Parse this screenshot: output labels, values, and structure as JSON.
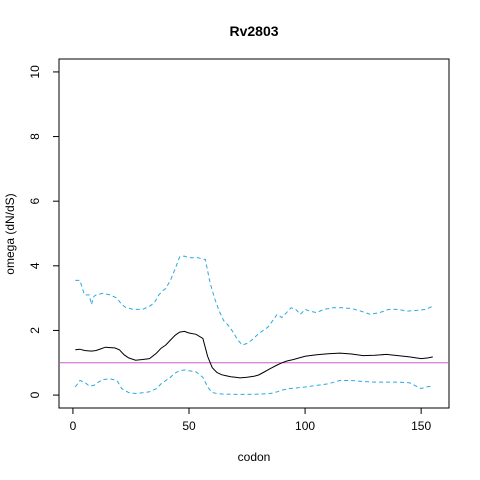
{
  "chart_data": {
    "type": "line",
    "title": "Rv2803",
    "xlabel": "codon",
    "ylabel": "omega (dN/dS)",
    "xlim": [
      -6,
      162
    ],
    "ylim": [
      -0.4,
      10.4
    ],
    "x_ticks": [
      0,
      50,
      100,
      150
    ],
    "y_ticks": [
      0,
      2,
      4,
      6,
      8,
      10
    ],
    "grid": false,
    "reference_line": {
      "y": 1,
      "color": "#c85fc8"
    },
    "series": [
      {
        "role": "estimate",
        "color": "#000000",
        "dash": "solid",
        "x": [
          1,
          3,
          5,
          8,
          10,
          12,
          14,
          16,
          18,
          20,
          22,
          24,
          27,
          30,
          33,
          36,
          38,
          40,
          42,
          44,
          46,
          48,
          50,
          53,
          56,
          58,
          60,
          62,
          64,
          66,
          68,
          70,
          72,
          75,
          78,
          80,
          82,
          85,
          88,
          90,
          92,
          95,
          100,
          105,
          110,
          115,
          120,
          125,
          130,
          135,
          140,
          145,
          150,
          153,
          155
        ],
        "values": [
          1.4,
          1.42,
          1.38,
          1.36,
          1.38,
          1.43,
          1.48,
          1.47,
          1.46,
          1.4,
          1.25,
          1.15,
          1.08,
          1.1,
          1.13,
          1.3,
          1.45,
          1.55,
          1.7,
          1.85,
          1.95,
          1.97,
          1.92,
          1.88,
          1.75,
          1.2,
          0.85,
          0.7,
          0.63,
          0.6,
          0.57,
          0.55,
          0.53,
          0.55,
          0.58,
          0.62,
          0.7,
          0.82,
          0.93,
          1.0,
          1.05,
          1.1,
          1.2,
          1.25,
          1.28,
          1.3,
          1.27,
          1.22,
          1.23,
          1.26,
          1.22,
          1.18,
          1.13,
          1.15,
          1.18
        ]
      },
      {
        "role": "upper bound",
        "color": "#29a9e0",
        "dash": "dashed",
        "x": [
          1,
          3,
          5,
          7,
          8,
          9,
          10,
          13,
          16,
          19,
          21,
          23,
          26,
          30,
          33,
          35,
          37,
          39,
          40,
          42,
          44,
          46,
          48,
          50,
          52,
          54,
          56,
          57,
          59,
          61,
          63,
          65,
          67,
          69,
          71,
          73,
          75,
          77,
          80,
          82,
          84,
          86,
          88,
          90,
          92,
          94,
          96,
          98,
          100,
          102,
          105,
          108,
          112,
          116,
          120,
          124,
          128,
          132,
          136,
          140,
          144,
          148,
          152,
          155
        ],
        "values": [
          3.55,
          3.55,
          3.1,
          3.1,
          2.8,
          3.05,
          3.1,
          3.15,
          3.1,
          3.0,
          2.8,
          2.7,
          2.65,
          2.65,
          2.75,
          2.85,
          3.1,
          3.25,
          3.3,
          3.55,
          3.9,
          4.28,
          4.3,
          4.25,
          4.25,
          4.25,
          4.2,
          4.2,
          3.5,
          3.0,
          2.6,
          2.3,
          2.15,
          1.95,
          1.7,
          1.55,
          1.6,
          1.7,
          1.9,
          2.0,
          2.1,
          2.3,
          2.5,
          2.4,
          2.55,
          2.7,
          2.65,
          2.5,
          2.65,
          2.6,
          2.55,
          2.65,
          2.7,
          2.7,
          2.68,
          2.6,
          2.5,
          2.55,
          2.65,
          2.65,
          2.6,
          2.62,
          2.65,
          2.75
        ]
      },
      {
        "role": "lower bound",
        "color": "#29a9e0",
        "dash": "dashed",
        "x": [
          1,
          3,
          5,
          7,
          9,
          11,
          13,
          16,
          19,
          21,
          24,
          27,
          30,
          33,
          36,
          38,
          40,
          42,
          44,
          46,
          48,
          50,
          53,
          56,
          58,
          60,
          62,
          65,
          70,
          75,
          80,
          85,
          88,
          90,
          93,
          96,
          100,
          105,
          110,
          115,
          120,
          125,
          130,
          135,
          140,
          145,
          150,
          152,
          155
        ],
        "values": [
          0.25,
          0.45,
          0.4,
          0.28,
          0.3,
          0.4,
          0.48,
          0.5,
          0.45,
          0.2,
          0.08,
          0.05,
          0.07,
          0.1,
          0.2,
          0.35,
          0.45,
          0.55,
          0.68,
          0.75,
          0.78,
          0.75,
          0.72,
          0.55,
          0.25,
          0.08,
          0.05,
          0.03,
          0.02,
          0.02,
          0.03,
          0.05,
          0.1,
          0.15,
          0.2,
          0.22,
          0.25,
          0.3,
          0.35,
          0.45,
          0.45,
          0.42,
          0.4,
          0.4,
          0.4,
          0.38,
          0.2,
          0.25,
          0.28
        ]
      }
    ]
  }
}
